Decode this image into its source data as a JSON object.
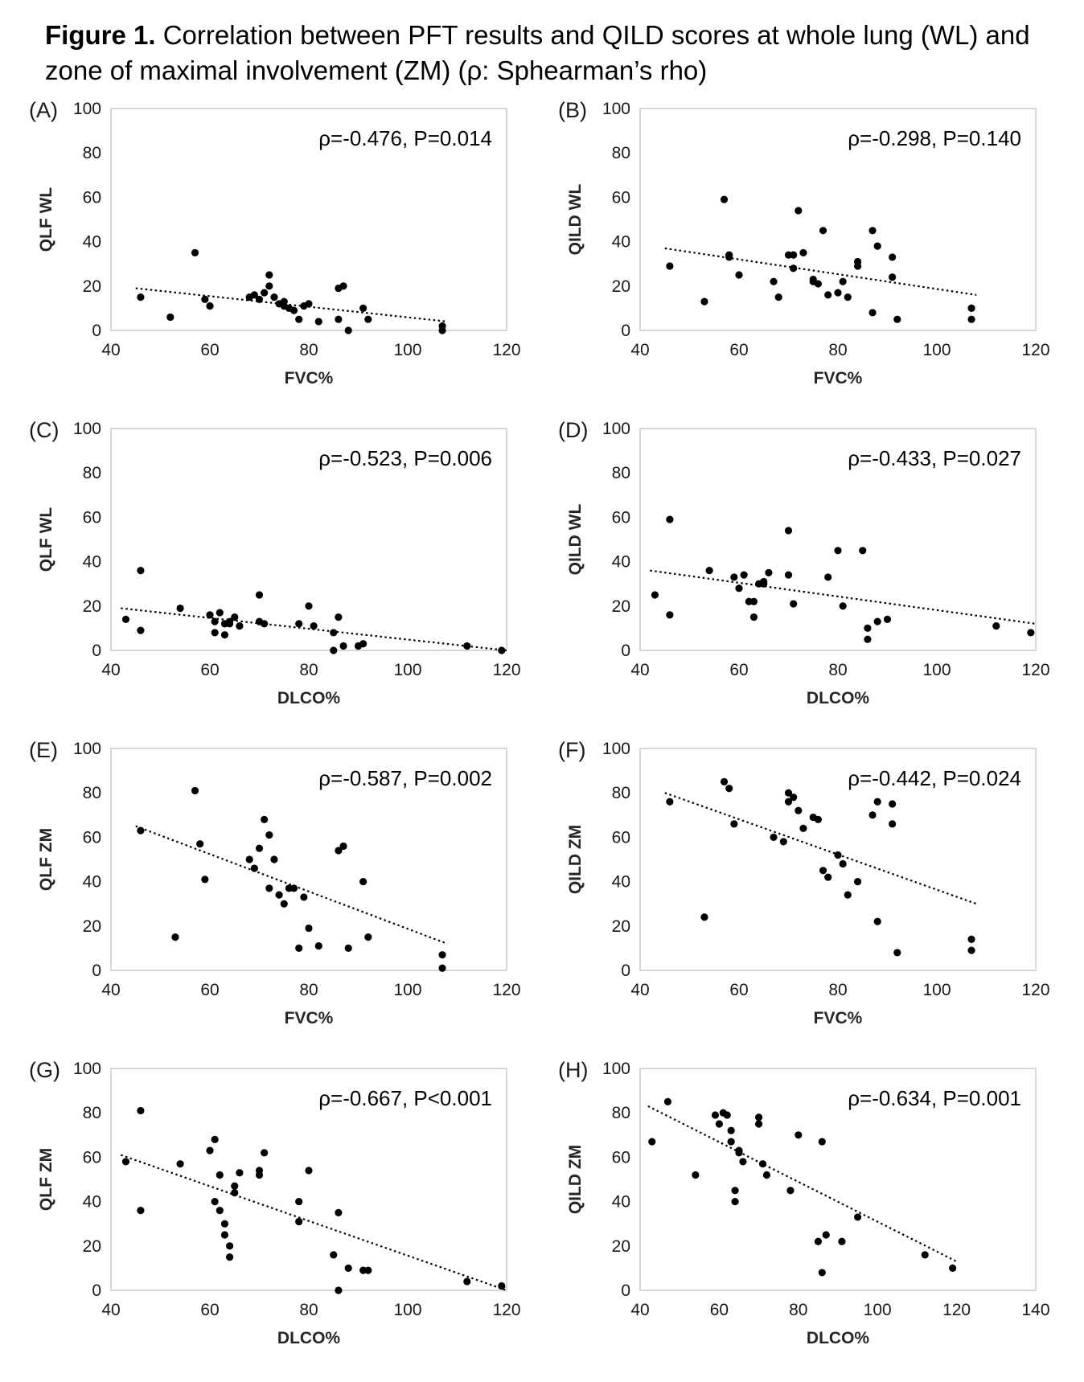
{
  "figure": {
    "caption_bold": "Figure 1.",
    "caption_rest": " Correlation between PFT results and QILD scores at whole lung (WL) and zone of maximal involvement (ZM) (ρ: Sphearman’s rho)"
  },
  "colors": {
    "panel_label": "#1f3f80",
    "axis": "#c6c6c6",
    "point": "#000000",
    "trend": "#000000",
    "text": "#1a1a1a"
  },
  "chart_data": [
    {
      "type": "scatter",
      "panel": "(A)",
      "ylabel": "QLF WL",
      "xlabel": "FVC%",
      "annotation": "ρ=-0.476, P=0.014",
      "xlim": [
        40,
        120
      ],
      "ylim": [
        0,
        100
      ],
      "xticks": [
        40,
        60,
        80,
        100,
        120
      ],
      "yticks": [
        0,
        20,
        40,
        60,
        80,
        100
      ],
      "points": [
        [
          46,
          15
        ],
        [
          52,
          6
        ],
        [
          57,
          35
        ],
        [
          59,
          14
        ],
        [
          60,
          11
        ],
        [
          68,
          15
        ],
        [
          69,
          16
        ],
        [
          70,
          14
        ],
        [
          71,
          17
        ],
        [
          72,
          25
        ],
        [
          72,
          20
        ],
        [
          73,
          15
        ],
        [
          74,
          12
        ],
        [
          75,
          11
        ],
        [
          75,
          13
        ],
        [
          76,
          10
        ],
        [
          77,
          9
        ],
        [
          78,
          5
        ],
        [
          79,
          11
        ],
        [
          80,
          12
        ],
        [
          82,
          4
        ],
        [
          86,
          19
        ],
        [
          86,
          5
        ],
        [
          87,
          20
        ],
        [
          88,
          0
        ],
        [
          91,
          10
        ],
        [
          92,
          5
        ],
        [
          107,
          2
        ],
        [
          107,
          0
        ]
      ],
      "trend": [
        [
          45,
          19
        ],
        [
          108,
          4
        ]
      ]
    },
    {
      "type": "scatter",
      "panel": "(B)",
      "ylabel": "QILD WL",
      "xlabel": "FVC%",
      "annotation": "ρ=-0.298, P=0.140",
      "xlim": [
        40,
        120
      ],
      "ylim": [
        0,
        100
      ],
      "xticks": [
        40,
        60,
        80,
        100,
        120
      ],
      "yticks": [
        0,
        20,
        40,
        60,
        80,
        100
      ],
      "points": [
        [
          46,
          29
        ],
        [
          53,
          13
        ],
        [
          57,
          59
        ],
        [
          58,
          34
        ],
        [
          58,
          33
        ],
        [
          60,
          25
        ],
        [
          67,
          22
        ],
        [
          68,
          15
        ],
        [
          70,
          34
        ],
        [
          71,
          34
        ],
        [
          71,
          28
        ],
        [
          72,
          54
        ],
        [
          73,
          35
        ],
        [
          75,
          22
        ],
        [
          75,
          23
        ],
        [
          76,
          21
        ],
        [
          77,
          45
        ],
        [
          78,
          16
        ],
        [
          80,
          17
        ],
        [
          81,
          22
        ],
        [
          82,
          15
        ],
        [
          84,
          31
        ],
        [
          84,
          29
        ],
        [
          87,
          45
        ],
        [
          87,
          8
        ],
        [
          88,
          38
        ],
        [
          91,
          33
        ],
        [
          91,
          24
        ],
        [
          92,
          5
        ],
        [
          107,
          10
        ],
        [
          107,
          5
        ]
      ],
      "trend": [
        [
          45,
          37
        ],
        [
          108,
          16
        ]
      ]
    },
    {
      "type": "scatter",
      "panel": "(C)",
      "ylabel": "QLF WL",
      "xlabel": "DLCO%",
      "annotation": "ρ=-0.523, P=0.006",
      "xlim": [
        40,
        120
      ],
      "ylim": [
        0,
        100
      ],
      "xticks": [
        40,
        60,
        80,
        100,
        120
      ],
      "yticks": [
        0,
        20,
        40,
        60,
        80,
        100
      ],
      "points": [
        [
          43,
          14
        ],
        [
          46,
          36
        ],
        [
          46,
          9
        ],
        [
          54,
          19
        ],
        [
          60,
          16
        ],
        [
          61,
          13
        ],
        [
          61,
          8
        ],
        [
          62,
          17
        ],
        [
          63,
          7
        ],
        [
          63,
          12
        ],
        [
          64,
          12
        ],
        [
          64,
          13
        ],
        [
          65,
          15
        ],
        [
          66,
          11
        ],
        [
          70,
          25
        ],
        [
          70,
          13
        ],
        [
          71,
          12
        ],
        [
          78,
          12
        ],
        [
          80,
          20
        ],
        [
          81,
          11
        ],
        [
          85,
          8
        ],
        [
          85,
          0
        ],
        [
          86,
          15
        ],
        [
          87,
          2
        ],
        [
          90,
          2
        ],
        [
          91,
          3
        ],
        [
          112,
          2
        ],
        [
          119,
          0
        ]
      ],
      "trend": [
        [
          42,
          19
        ],
        [
          120,
          0
        ]
      ]
    },
    {
      "type": "scatter",
      "panel": "(D)",
      "ylabel": "QILD WL",
      "xlabel": "DLCO%",
      "annotation": "ρ=-0.433, P=0.027",
      "xlim": [
        40,
        120
      ],
      "ylim": [
        0,
        100
      ],
      "xticks": [
        40,
        60,
        80,
        100,
        120
      ],
      "yticks": [
        0,
        20,
        40,
        60,
        80,
        100
      ],
      "points": [
        [
          43,
          25
        ],
        [
          46,
          59
        ],
        [
          46,
          16
        ],
        [
          54,
          36
        ],
        [
          59,
          33
        ],
        [
          60,
          28
        ],
        [
          61,
          34
        ],
        [
          62,
          22
        ],
        [
          63,
          15
        ],
        [
          63,
          22
        ],
        [
          64,
          30
        ],
        [
          65,
          30
        ],
        [
          65,
          31
        ],
        [
          66,
          35
        ],
        [
          70,
          54
        ],
        [
          70,
          34
        ],
        [
          71,
          21
        ],
        [
          78,
          33
        ],
        [
          80,
          45
        ],
        [
          81,
          20
        ],
        [
          85,
          45
        ],
        [
          86,
          5
        ],
        [
          86,
          10
        ],
        [
          88,
          13
        ],
        [
          90,
          14
        ],
        [
          112,
          11
        ],
        [
          119,
          8
        ]
      ],
      "trend": [
        [
          42,
          36
        ],
        [
          120,
          12
        ]
      ]
    },
    {
      "type": "scatter",
      "panel": "(E)",
      "ylabel": "QLF ZM",
      "xlabel": "FVC%",
      "annotation": "ρ=-0.587, P=0.002",
      "xlim": [
        40,
        120
      ],
      "ylim": [
        0,
        100
      ],
      "xticks": [
        40,
        60,
        80,
        100,
        120
      ],
      "yticks": [
        0,
        20,
        40,
        60,
        80,
        100
      ],
      "points": [
        [
          46,
          63
        ],
        [
          53,
          15
        ],
        [
          57,
          81
        ],
        [
          58,
          57
        ],
        [
          59,
          41
        ],
        [
          68,
          50
        ],
        [
          69,
          46
        ],
        [
          70,
          55
        ],
        [
          71,
          68
        ],
        [
          72,
          61
        ],
        [
          72,
          37
        ],
        [
          73,
          50
        ],
        [
          74,
          34
        ],
        [
          75,
          30
        ],
        [
          76,
          37
        ],
        [
          77,
          37
        ],
        [
          78,
          10
        ],
        [
          79,
          33
        ],
        [
          80,
          19
        ],
        [
          82,
          11
        ],
        [
          86,
          54
        ],
        [
          87,
          56
        ],
        [
          88,
          10
        ],
        [
          91,
          40
        ],
        [
          92,
          15
        ],
        [
          107,
          7
        ],
        [
          107,
          1
        ]
      ],
      "trend": [
        [
          45,
          65
        ],
        [
          108,
          12
        ]
      ]
    },
    {
      "type": "scatter",
      "panel": "(F)",
      "ylabel": "QILD ZM",
      "xlabel": "FVC%",
      "annotation": "ρ=-0.442, P=0.024",
      "xlim": [
        40,
        120
      ],
      "ylim": [
        0,
        100
      ],
      "xticks": [
        40,
        60,
        80,
        100,
        120
      ],
      "yticks": [
        0,
        20,
        40,
        60,
        80,
        100
      ],
      "points": [
        [
          46,
          76
        ],
        [
          53,
          24
        ],
        [
          57,
          85
        ],
        [
          58,
          82
        ],
        [
          59,
          66
        ],
        [
          67,
          60
        ],
        [
          69,
          58
        ],
        [
          70,
          80
        ],
        [
          70,
          76
        ],
        [
          71,
          78
        ],
        [
          72,
          72
        ],
        [
          73,
          64
        ],
        [
          75,
          69
        ],
        [
          76,
          68
        ],
        [
          77,
          45
        ],
        [
          78,
          42
        ],
        [
          80,
          52
        ],
        [
          81,
          48
        ],
        [
          82,
          34
        ],
        [
          84,
          40
        ],
        [
          87,
          70
        ],
        [
          88,
          76
        ],
        [
          88,
          22
        ],
        [
          91,
          75
        ],
        [
          91,
          66
        ],
        [
          92,
          8
        ],
        [
          107,
          14
        ],
        [
          107,
          9
        ]
      ],
      "trend": [
        [
          45,
          80
        ],
        [
          108,
          30
        ]
      ]
    },
    {
      "type": "scatter",
      "panel": "(G)",
      "ylabel": "QLF ZM",
      "xlabel": "DLCO%",
      "annotation": "ρ=-0.667, P<0.001",
      "xlim": [
        40,
        120
      ],
      "ylim": [
        0,
        100
      ],
      "xticks": [
        40,
        60,
        80,
        100,
        120
      ],
      "yticks": [
        0,
        20,
        40,
        60,
        80,
        100
      ],
      "points": [
        [
          43,
          58
        ],
        [
          46,
          81
        ],
        [
          46,
          36
        ],
        [
          54,
          57
        ],
        [
          60,
          63
        ],
        [
          61,
          68
        ],
        [
          61,
          40
        ],
        [
          62,
          36
        ],
        [
          62,
          52
        ],
        [
          63,
          30
        ],
        [
          63,
          25
        ],
        [
          64,
          15
        ],
        [
          64,
          20
        ],
        [
          65,
          47
        ],
        [
          65,
          44
        ],
        [
          66,
          53
        ],
        [
          70,
          52
        ],
        [
          70,
          54
        ],
        [
          71,
          62
        ],
        [
          78,
          40
        ],
        [
          78,
          31
        ],
        [
          80,
          54
        ],
        [
          85,
          16
        ],
        [
          86,
          35
        ],
        [
          86,
          0
        ],
        [
          88,
          10
        ],
        [
          91,
          9
        ],
        [
          92,
          9
        ],
        [
          112,
          4
        ],
        [
          119,
          2
        ]
      ],
      "trend": [
        [
          42,
          61
        ],
        [
          120,
          0
        ]
      ]
    },
    {
      "type": "scatter",
      "panel": "(H)",
      "ylabel": "QILD ZM",
      "xlabel": "DLCO%",
      "annotation": "ρ=-0.634, P=0.001",
      "xlim": [
        40,
        140
      ],
      "ylim": [
        0,
        100
      ],
      "xticks": [
        40,
        60,
        80,
        100,
        120,
        140
      ],
      "yticks": [
        0,
        20,
        40,
        60,
        80,
        100
      ],
      "points": [
        [
          43,
          67
        ],
        [
          47,
          85
        ],
        [
          54,
          52
        ],
        [
          59,
          79
        ],
        [
          60,
          75
        ],
        [
          61,
          80
        ],
        [
          62,
          79
        ],
        [
          63,
          72
        ],
        [
          63,
          67
        ],
        [
          64,
          45
        ],
        [
          64,
          40
        ],
        [
          65,
          63
        ],
        [
          65,
          62
        ],
        [
          66,
          58
        ],
        [
          70,
          75
        ],
        [
          70,
          78
        ],
        [
          71,
          57
        ],
        [
          72,
          52
        ],
        [
          78,
          45
        ],
        [
          80,
          70
        ],
        [
          85,
          22
        ],
        [
          86,
          67
        ],
        [
          86,
          8
        ],
        [
          87,
          25
        ],
        [
          91,
          22
        ],
        [
          95,
          33
        ],
        [
          112,
          16
        ],
        [
          119,
          10
        ]
      ],
      "trend": [
        [
          42,
          83
        ],
        [
          120,
          13
        ]
      ]
    }
  ]
}
